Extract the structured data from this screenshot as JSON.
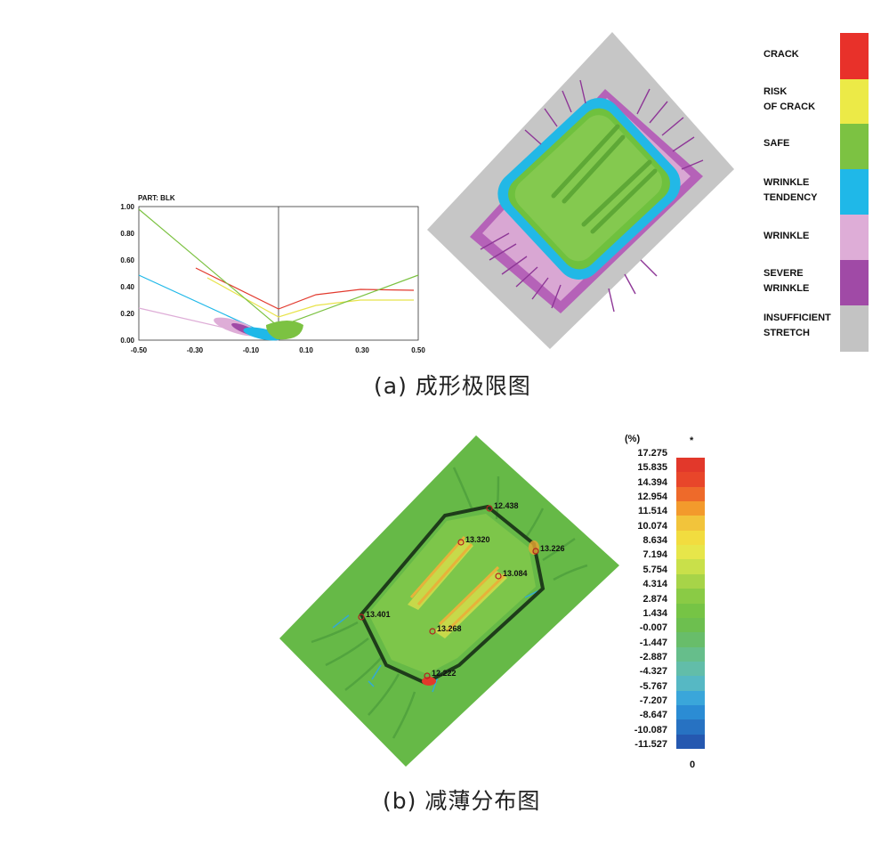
{
  "fld": {
    "part_label": "PART:  BLK",
    "y_ticks": [
      "1.00",
      "0.80",
      "0.60",
      "0.40",
      "0.20",
      "0.00"
    ],
    "x_ticks": [
      "-0.50",
      "-0.30",
      "-0.10",
      "0.10",
      "0.30",
      "0.50"
    ]
  },
  "legend": {
    "items": [
      {
        "label": "CRACK",
        "color": "#e8312a"
      },
      {
        "label": "RISK\nOF CRACK",
        "color": "#ecea47"
      },
      {
        "label": "SAFE",
        "color": "#7cc242"
      },
      {
        "label": "WRINKLE\nTENDENCY",
        "color": "#1fb8e8"
      },
      {
        "label": "WRINKLE",
        "color": "#deadd7"
      },
      {
        "label": "SEVERE\nWRINKLE",
        "color": "#a04aa6"
      },
      {
        "label": "INSUFFICIENT\nSTRETCH",
        "color": "#c3c3c3"
      }
    ]
  },
  "caption_a": "(a) 成形极限图",
  "thinning": {
    "unit": "(%)",
    "top_mark": "*",
    "bottom_mark": "0",
    "scale_values": [
      "17.275",
      "15.835",
      "14.394",
      "12.954",
      "11.514",
      "10.074",
      "8.634",
      "7.194",
      "5.754",
      "4.314",
      "2.874",
      "1.434",
      "-0.007",
      "-1.447",
      "-2.887",
      "-4.327",
      "-5.767",
      "-7.207",
      "-8.647",
      "-10.087",
      "-11.527"
    ],
    "scale_colors": [
      "#e2382b",
      "#e8462a",
      "#ee6a2a",
      "#f39a2c",
      "#f2c43b",
      "#f2dc3f",
      "#e7e64a",
      "#c9e04a",
      "#a7d448",
      "#8acb45",
      "#76c445",
      "#6dbf4f",
      "#68bd6a",
      "#66be8b",
      "#62bda9",
      "#56b8c4",
      "#3aa6da",
      "#2b8cd4",
      "#2772c2",
      "#2558b0",
      "#23469e"
    ],
    "markers": [
      {
        "label": "12.438"
      },
      {
        "label": "13.320"
      },
      {
        "label": "13.226"
      },
      {
        "label": "13.084"
      },
      {
        "label": "13.401"
      },
      {
        "label": "13.268"
      },
      {
        "label": "12.222"
      }
    ]
  },
  "caption_b": "(b) 减薄分布图"
}
